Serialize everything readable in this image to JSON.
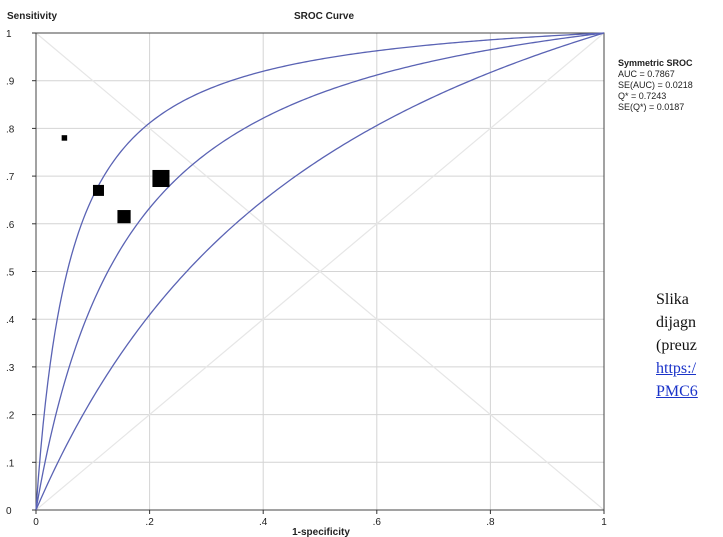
{
  "chart_data": {
    "type": "scatter",
    "title": "SROC Curve",
    "xlabel": "1-specificity",
    "ylabel": "Sensitivity",
    "xlim": [
      0,
      1
    ],
    "ylim": [
      0,
      1
    ],
    "grid": true,
    "x_ticks": [
      0,
      0.2,
      0.4,
      0.6,
      0.8,
      1
    ],
    "x_tick_labels": [
      "0",
      ".2",
      ".4",
      ".6",
      ".8",
      "1"
    ],
    "y_ticks": [
      0,
      0.1,
      0.2,
      0.3,
      0.4,
      0.5,
      0.6,
      0.7,
      0.8,
      0.9,
      1
    ],
    "y_tick_labels": [
      "0",
      ".1",
      ".2",
      ".3",
      ".4",
      ".5",
      ".6",
      ".7",
      ".8",
      ".9",
      "1"
    ],
    "points": [
      {
        "x": 0.05,
        "y": 0.78,
        "weight": 1.0
      },
      {
        "x": 0.11,
        "y": 0.67,
        "weight": 2.0
      },
      {
        "x": 0.155,
        "y": 0.615,
        "weight": 2.4
      },
      {
        "x": 0.22,
        "y": 0.695,
        "weight": 3.1
      }
    ],
    "curves": [
      {
        "role": "upper",
        "dor": 17.2
      },
      {
        "role": "sroc",
        "dor": 6.9
      },
      {
        "role": "lower",
        "dor": 2.77
      }
    ],
    "stats": {
      "heading": "Symmetric SROC",
      "lines": [
        "AUC = 0.7867",
        "SE(AUC) = 0.0218",
        "Q* = 0.7243",
        "SE(Q*) = 0.0187"
      ]
    },
    "colors": {
      "curve": "#5a63b4",
      "grid": "#d4d4d4",
      "diagonal": "#e6e6e6",
      "point": "#000000",
      "axis": "#333333"
    }
  },
  "caption": {
    "lines": [
      "Slika",
      "dijagn",
      "(preuz"
    ],
    "link_lines": [
      "https:/",
      "PMC6"
    ]
  }
}
